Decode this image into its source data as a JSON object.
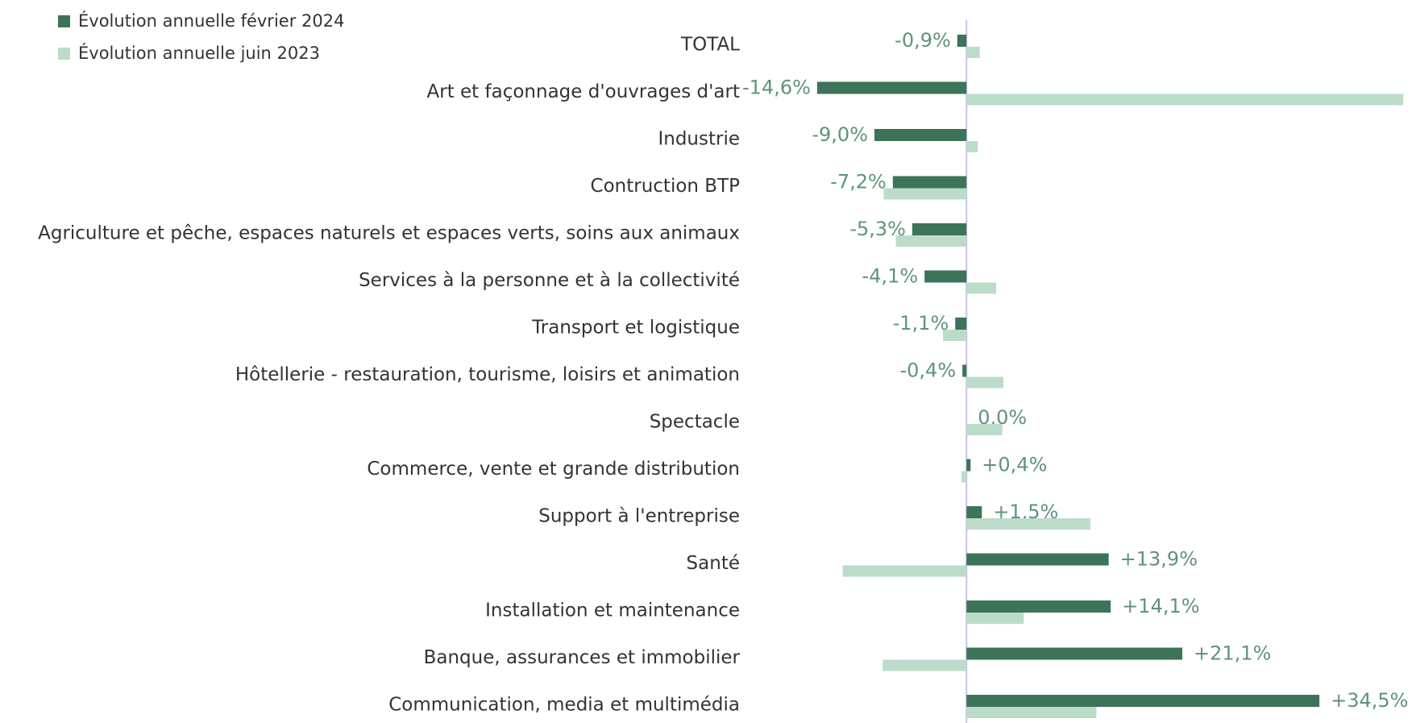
{
  "chart_data": {
    "type": "bar",
    "orientation": "horizontal",
    "categories": [
      "TOTAL",
      "Art  et façonnage d'ouvrages d'art",
      "Industrie",
      "Contruction BTP",
      "Agriculture et pêche, espaces naturels et espaces verts, soins aux animaux",
      "Services à la personne et à la collectivité",
      "Transport et logistique",
      "Hôtellerie - restauration, tourisme, loisirs et animation",
      "Spectacle",
      "Commerce, vente et grande distribution",
      "Support à l'entreprise",
      "Santé",
      "Installation et maintenance",
      "Banque, assurances et immobilier",
      "Communication, media et multimédia"
    ],
    "series": [
      {
        "name": "Évolution annuelle février 2024",
        "color": "#3d7358",
        "values": [
          -0.9,
          -14.6,
          -9.0,
          -7.2,
          -5.3,
          -4.1,
          -1.1,
          -0.4,
          0.0,
          0.4,
          1.5,
          13.9,
          14.1,
          21.1,
          34.5
        ],
        "value_labels": [
          "-0,9%",
          "-14,6%",
          "-9,0%",
          "-7,2%",
          "-5,3%",
          "-4,1%",
          "-1,1%",
          "-0,4%",
          "0,0%",
          "+0,4%",
          "+1,5%",
          "+13,9%",
          "+14,1%",
          "+21,1%",
          "+34,5%"
        ]
      },
      {
        "name": "Évolution annuelle juin 2023",
        "color": "#bcdcca",
        "values": [
          1.3,
          42.7,
          1.1,
          -8.1,
          -6.9,
          2.9,
          -2.3,
          3.6,
          3.5,
          -0.5,
          12.1,
          -12.1,
          5.6,
          -8.2,
          12.7
        ]
      }
    ],
    "xlim": [
      -22,
      43
    ],
    "legend": "top-left"
  }
}
